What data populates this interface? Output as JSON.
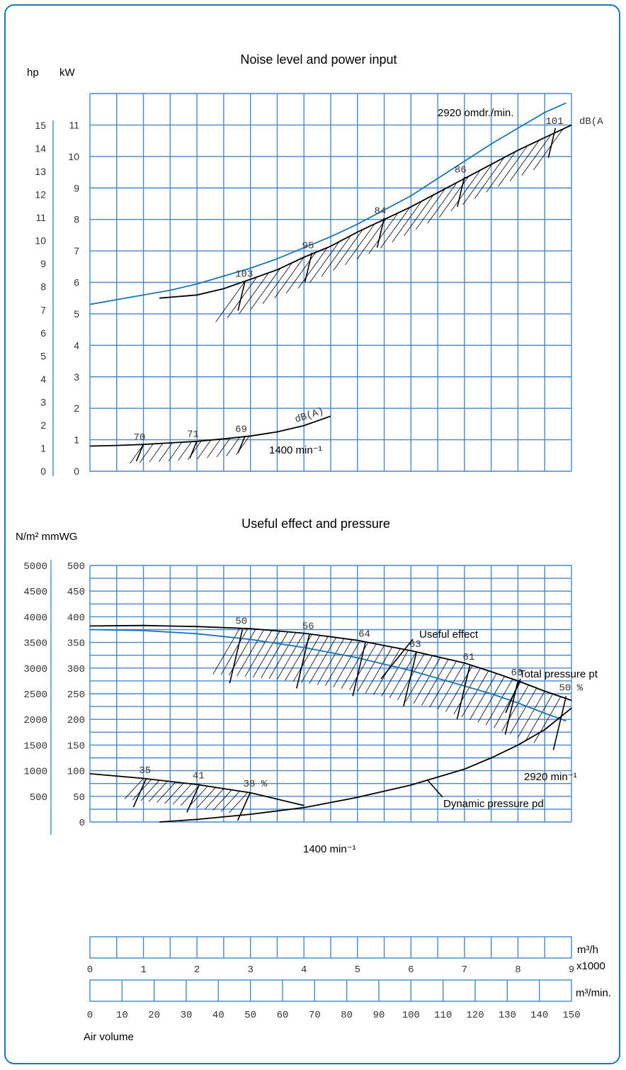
{
  "chart_data": [
    {
      "type": "line",
      "title": "Noise level and power input",
      "left_unit_labels": [
        "hp",
        "kW"
      ],
      "hp_ticks": [
        0,
        1,
        2,
        3,
        4,
        5,
        6,
        7,
        8,
        9,
        10,
        11,
        12,
        13,
        14,
        15
      ],
      "kw_ticks": [
        0,
        1,
        2,
        3,
        4,
        5,
        6,
        7,
        8,
        9,
        10,
        11
      ],
      "x_ticks_m3h_x1000": [
        0,
        1,
        2,
        3,
        4,
        5,
        6,
        7,
        8,
        9
      ],
      "xlim_m3h_x1000": [
        0,
        9
      ],
      "ylim_kw": [
        0,
        12
      ],
      "grid": true,
      "series": [
        {
          "name": "2920 omdr./min.",
          "x": [
            0,
            0.5,
            1,
            1.5,
            2,
            2.5,
            3,
            3.5,
            4,
            4.5,
            5,
            5.5,
            6,
            6.5,
            7,
            7.5,
            8,
            8.5,
            8.9
          ],
          "y": [
            5.3,
            5.45,
            5.6,
            5.75,
            5.95,
            6.2,
            6.45,
            6.75,
            7.1,
            7.45,
            7.85,
            8.3,
            8.75,
            9.3,
            9.85,
            10.4,
            10.9,
            11.4,
            11.7
          ]
        },
        {
          "x": [
            1.3,
            2,
            2.5,
            3,
            3.5,
            4,
            4.5,
            5,
            5.5,
            6,
            6.5,
            7,
            7.5,
            8,
            8.5,
            9
          ],
          "y": [
            5.5,
            5.6,
            5.8,
            6.1,
            6.4,
            6.8,
            7.15,
            7.6,
            8.0,
            8.4,
            8.85,
            9.3,
            9.75,
            10.2,
            10.6,
            11.0
          ]
        },
        {
          "name": "1400 min⁻¹",
          "x": [
            0,
            0.5,
            1,
            1.5,
            2,
            2.5,
            3,
            3.5,
            4,
            4.5
          ],
          "y": [
            0.8,
            0.82,
            0.85,
            0.9,
            0.95,
            1.03,
            1.12,
            1.25,
            1.45,
            1.75
          ]
        }
      ],
      "noise_labels_dBA": [
        {
          "curve": "2920",
          "label": "103",
          "x": 2.9,
          "y": 6.05
        },
        {
          "curve": "2920",
          "label": "95",
          "x": 4.15,
          "y": 6.95
        },
        {
          "curve": "2920",
          "label": "84",
          "x": 5.5,
          "y": 8.05
        },
        {
          "curve": "2920",
          "label": "86",
          "x": 7.0,
          "y": 9.35
        },
        {
          "curve": "2920",
          "label": "101",
          "x": 8.7,
          "y": 10.9
        },
        {
          "curve": "1400",
          "label": "70",
          "x": 1.0,
          "y": 0.86
        },
        {
          "curve": "1400",
          "label": "71",
          "x": 2.0,
          "y": 0.96
        },
        {
          "curve": "1400",
          "label": "69",
          "x": 2.9,
          "y": 1.12
        }
      ],
      "unit_label_2920": "dB(A",
      "unit_label_1400": "dB(A)"
    },
    {
      "type": "line",
      "title": "Useful effect and pressure",
      "left_unit_labels": [
        "N/m² mmWG"
      ],
      "nm2_ticks": [
        500,
        1000,
        1500,
        2000,
        2500,
        3000,
        3500,
        4000,
        4500,
        5000
      ],
      "mmwg_ticks": [
        0,
        50,
        100,
        150,
        200,
        250,
        300,
        350,
        400,
        450,
        500
      ],
      "xlim_m3h_x1000": [
        0,
        9
      ],
      "ylim_mmwg": [
        0,
        500
      ],
      "grid": true,
      "series": [
        {
          "name": "Total pressure pt",
          "x": [
            0,
            1,
            2,
            3,
            4,
            5,
            6,
            7,
            7.5,
            8,
            8.5,
            9
          ],
          "y": [
            382,
            383,
            381,
            377,
            368,
            354,
            334,
            310,
            293,
            275,
            255,
            237
          ]
        },
        {
          "name": "2920 min⁻¹",
          "x": [
            0,
            1,
            2,
            3,
            4,
            5,
            6,
            7,
            7.5,
            8,
            8.5,
            8.9
          ],
          "y": [
            375,
            373,
            367,
            356,
            340,
            320,
            295,
            265,
            250,
            232,
            212,
            197
          ]
        },
        {
          "name": "Dynamic pressure pd",
          "x": [
            1.3,
            2,
            3,
            4,
            5,
            6,
            7,
            7.5,
            8,
            8.5,
            9
          ],
          "y": [
            0,
            5,
            15,
            28,
            48,
            72,
            103,
            125,
            150,
            180,
            222
          ]
        },
        {
          "name": "1400 min⁻¹",
          "x": [
            0,
            1,
            2,
            3,
            4
          ],
          "y": [
            94,
            85,
            73,
            57,
            32
          ]
        }
      ],
      "efficiency_labels_pct": [
        {
          "label": "50",
          "x": 2.85,
          "y": 375
        },
        {
          "label": "56",
          "x": 4.1,
          "y": 365
        },
        {
          "label": "64",
          "x": 5.15,
          "y": 350
        },
        {
          "label": "63",
          "x": 6.1,
          "y": 330
        },
        {
          "label": "61",
          "x": 7.1,
          "y": 305
        },
        {
          "label": "60",
          "x": 8.0,
          "y": 275
        },
        {
          "label": "50 %",
          "x": 8.9,
          "y": 245
        },
        {
          "label": "35",
          "x": 1.05,
          "y": 84
        },
        {
          "label": "41",
          "x": 2.05,
          "y": 74
        },
        {
          "label": "38 %",
          "x": 3.0,
          "y": 58
        }
      ],
      "annotations": [
        "Useful effect",
        "Total pressure pt",
        "2920 min⁻¹",
        "Dynamic pressure pd",
        "1400 min⁻¹"
      ]
    }
  ],
  "x_axis": {
    "scale_m3h_ticks": [
      0,
      1,
      2,
      3,
      4,
      5,
      6,
      7,
      8,
      9
    ],
    "scale_m3h_unit": "m³/h",
    "scale_m3h_multiplier": "x1000",
    "scale_m3min_ticks": [
      0,
      10,
      20,
      30,
      40,
      50,
      60,
      70,
      80,
      90,
      100,
      110,
      120,
      130,
      140,
      150
    ],
    "scale_m3min_unit": "m³/min.",
    "caption": "Air volume"
  }
}
